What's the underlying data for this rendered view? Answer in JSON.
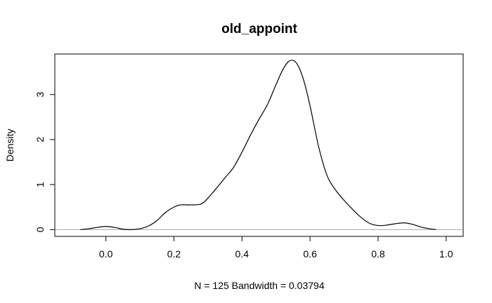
{
  "chart_data": {
    "type": "line",
    "title": "old_appoint",
    "xlabel": "N = 125   Bandwidth = 0.03794",
    "ylabel": "Density",
    "xlim": [
      -0.15,
      1.05
    ],
    "ylim": [
      -0.15,
      3.9
    ],
    "x_ticks": [
      0.0,
      0.2,
      0.4,
      0.6,
      0.8,
      1.0
    ],
    "x_tick_labels": [
      "0.0",
      "0.2",
      "0.4",
      "0.6",
      "0.8",
      "1.0"
    ],
    "y_ticks": [
      0,
      1,
      2,
      3
    ],
    "y_tick_labels": [
      "0",
      "1",
      "2",
      "3"
    ],
    "reference_line_y": 0,
    "grid": false,
    "legend": "none",
    "series": [
      {
        "x": [
          -0.075,
          -0.05,
          -0.025,
          0.0,
          0.025,
          0.05,
          0.075,
          0.1,
          0.125,
          0.15,
          0.175,
          0.2,
          0.22,
          0.25,
          0.28,
          0.3,
          0.325,
          0.35,
          0.375,
          0.4,
          0.425,
          0.45,
          0.475,
          0.5,
          0.52,
          0.54,
          0.56,
          0.58,
          0.6,
          0.625,
          0.65,
          0.675,
          0.7,
          0.725,
          0.75,
          0.775,
          0.8,
          0.825,
          0.85,
          0.875,
          0.9,
          0.925,
          0.95,
          0.97
        ],
        "y": [
          0.0,
          0.02,
          0.05,
          0.07,
          0.05,
          0.01,
          0.0,
          0.02,
          0.08,
          0.2,
          0.38,
          0.5,
          0.55,
          0.55,
          0.57,
          0.7,
          0.92,
          1.15,
          1.38,
          1.72,
          2.1,
          2.45,
          2.78,
          3.22,
          3.55,
          3.75,
          3.7,
          3.35,
          2.75,
          1.85,
          1.2,
          0.88,
          0.65,
          0.45,
          0.27,
          0.14,
          0.09,
          0.1,
          0.13,
          0.15,
          0.12,
          0.06,
          0.02,
          0.0
        ]
      }
    ]
  }
}
